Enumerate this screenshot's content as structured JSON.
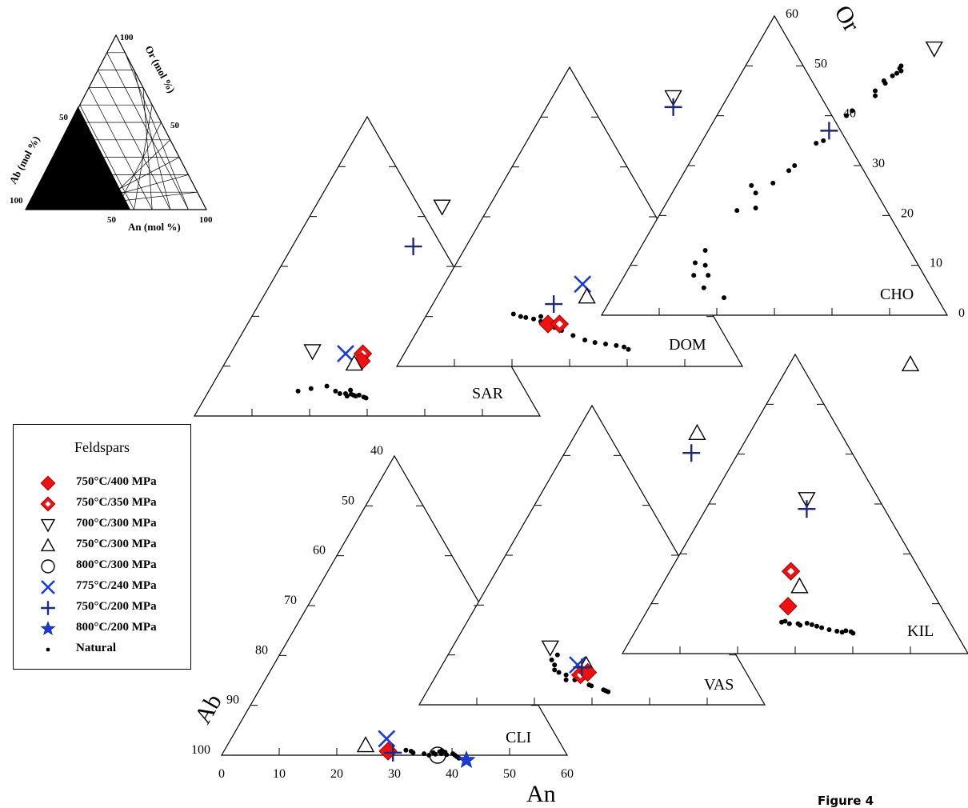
{
  "colors": {
    "red": "#ee1111",
    "blue": "#1a3bd6",
    "darkblue": "#1e2a78",
    "black": "#000000"
  },
  "inset": {
    "tick_labels": {
      "or_100": "100",
      "or_50": "50",
      "ab_50": "50",
      "ab_100": "100",
      "an_50": "50",
      "an_100": "100"
    },
    "axis_labels": {
      "or": "Or (mol %)",
      "ab": "Ab (mol %)",
      "an": "An (mol %)"
    }
  },
  "axes": {
    "an_title": "An",
    "ab_title": "Ab",
    "or_title": "Or",
    "an_ticks": [
      "0",
      "10",
      "20",
      "30",
      "40",
      "50",
      "60"
    ],
    "ab_ticks": [
      "40",
      "50",
      "60",
      "70",
      "80",
      "90",
      "100"
    ],
    "or_ticks": [
      "60",
      "50",
      "40",
      "30",
      "20",
      "10",
      "0"
    ]
  },
  "legend": {
    "title": "Feldspars",
    "items": [
      {
        "marker": "diamond-red",
        "label": "750°C/400 MPa"
      },
      {
        "marker": "diamond-red-open",
        "label": "750°C/350 MPa"
      },
      {
        "marker": "triangle-down",
        "label": "700°C/300 MPa"
      },
      {
        "marker": "triangle-up",
        "label": "750°C/300 MPa"
      },
      {
        "marker": "circle-open",
        "label": "800°C/300 MPa"
      },
      {
        "marker": "x-blue",
        "label": "775°C/240 MPa"
      },
      {
        "marker": "plus-blue",
        "label": "750°C/200 MPa"
      },
      {
        "marker": "star-blue",
        "label": "800°C/200 MPa"
      },
      {
        "marker": "dot",
        "label": "Natural"
      }
    ]
  },
  "figure_label": "Figure 4",
  "chart_data": {
    "type": "scatter",
    "subtype": "ternary",
    "components": [
      "An",
      "Ab",
      "Or"
    ],
    "an_range": [
      0,
      60
    ],
    "or_range": [
      0,
      60
    ],
    "ab_range": [
      40,
      100
    ],
    "panels": [
      {
        "label": "CLI",
        "points": [
          {
            "marker": "triangle-up",
            "an": 24,
            "or": 2
          },
          {
            "marker": "x-blue",
            "an": 27,
            "or": 3.3
          },
          {
            "marker": "diamond-red",
            "an": 28.5,
            "or": 0.8
          },
          {
            "marker": "plus-blue",
            "an": 29.5,
            "or": 0.5
          },
          {
            "marker": "circle-open",
            "an": 37.5,
            "or": 0
          },
          {
            "marker": "star-blue",
            "an": 43,
            "or": -1
          }
        ],
        "natural": [
          [
            31.5,
            1
          ],
          [
            32.5,
            0.8
          ],
          [
            33,
            0.5
          ],
          [
            35,
            0.3
          ],
          [
            36,
            0
          ],
          [
            37,
            0.2
          ],
          [
            37.5,
            0.7
          ],
          [
            38.5,
            0.6
          ],
          [
            38,
            0.3
          ],
          [
            39,
            0.1
          ],
          [
            40,
            0.3
          ],
          [
            40.5,
            0
          ],
          [
            41,
            -0.3
          ],
          [
            41.5,
            -0.6
          ],
          [
            36.5,
            0.5
          ],
          [
            37.8,
            0.9
          ]
        ]
      },
      {
        "label": "VAS",
        "points": [
          {
            "marker": "triangle-up",
            "an": 21,
            "or": 54.5
          },
          {
            "marker": "plus-blue",
            "an": 22,
            "or": 50.5
          },
          {
            "marker": "triangle-down",
            "an": 17,
            "or": 11.5
          },
          {
            "marker": "x-blue",
            "an": 23.5,
            "or": 8
          },
          {
            "marker": "triangle-up",
            "an": 25,
            "or": 8
          },
          {
            "marker": "diamond-red-open",
            "an": 25,
            "or": 6
          },
          {
            "marker": "diamond-red",
            "an": 26,
            "or": 6.5
          },
          {
            "marker": "plus-blue",
            "an": 24.5,
            "or": 7.5
          }
        ],
        "natural": [
          [
            19,
            10
          ],
          [
            18.5,
            9
          ],
          [
            19.5,
            8
          ],
          [
            20,
            7
          ],
          [
            21,
            6.5
          ],
          [
            22.5,
            6
          ],
          [
            23,
            5
          ],
          [
            24.5,
            5
          ],
          [
            25.5,
            5
          ],
          [
            27.5,
            4
          ],
          [
            28,
            3.8
          ],
          [
            30.5,
            3
          ],
          [
            31,
            2.8
          ],
          [
            31.5,
            2.6
          ]
        ]
      },
      {
        "label": "KIL",
        "points": [
          {
            "marker": "triangle-up",
            "an": 21,
            "or": 58
          },
          {
            "marker": "triangle-down",
            "an": 16.5,
            "or": 31
          },
          {
            "marker": "plus-blue",
            "an": 17.5,
            "or": 29
          },
          {
            "marker": "diamond-red-open",
            "an": 21,
            "or": 16.5
          },
          {
            "marker": "triangle-up",
            "an": 24,
            "or": 13.5
          },
          {
            "marker": "diamond-red",
            "an": 24,
            "or": 9.5
          }
        ],
        "natural": [
          [
            24.5,
            6.3
          ],
          [
            25,
            6.5
          ],
          [
            26,
            6
          ],
          [
            27.5,
            6
          ],
          [
            28,
            5.7
          ],
          [
            29,
            6.1
          ],
          [
            30,
            5.8
          ],
          [
            31,
            5.5
          ],
          [
            32,
            5.2
          ],
          [
            33.5,
            4.8
          ],
          [
            35,
            4.5
          ],
          [
            36,
            4.3
          ],
          [
            36.5,
            4.6
          ],
          [
            37.5,
            4.4
          ],
          [
            38,
            4.1
          ]
        ]
      },
      {
        "label": "SAR",
        "points": [
          {
            "marker": "triangle-down",
            "an": 22,
            "or": 42
          },
          {
            "marker": "plus-blue",
            "an": 21,
            "or": 34
          },
          {
            "marker": "triangle-down",
            "an": 14,
            "or": 13
          },
          {
            "marker": "x-blue",
            "an": 20,
            "or": 12.5
          },
          {
            "marker": "diamond-red-open",
            "an": 23,
            "or": 12.5
          },
          {
            "marker": "diamond-red",
            "an": 23.5,
            "or": 11
          },
          {
            "marker": "triangle-up",
            "an": 22.5,
            "or": 10.5
          }
        ],
        "natural": [
          [
            15.5,
            5
          ],
          [
            17.5,
            5.5
          ],
          [
            20,
            6
          ],
          [
            22,
            5
          ],
          [
            23,
            4.5
          ],
          [
            24,
            4.5
          ],
          [
            24.5,
            4
          ],
          [
            25,
            4.4
          ],
          [
            25.5,
            4.2
          ],
          [
            26,
            4
          ],
          [
            26.5,
            4.2
          ],
          [
            27.5,
            3.8
          ],
          [
            28,
            3.6
          ],
          [
            24.5,
            5.2
          ]
        ]
      },
      {
        "label": "DOM",
        "points": [
          {
            "marker": "triangle-down",
            "an": 21,
            "or": 54
          },
          {
            "marker": "plus-blue",
            "an": 22,
            "or": 52
          },
          {
            "marker": "x-blue",
            "an": 24,
            "or": 16.5
          },
          {
            "marker": "triangle-up",
            "an": 26,
            "or": 14
          },
          {
            "marker": "plus-blue",
            "an": 21,
            "or": 12.5
          },
          {
            "marker": "diamond-red",
            "an": 22,
            "or": 8.5
          },
          {
            "marker": "diamond-red-open",
            "an": 24,
            "or": 8.5
          }
        ],
        "natural": [
          [
            15,
            10.5
          ],
          [
            16.5,
            10
          ],
          [
            17.5,
            9.8
          ],
          [
            19,
            9.5
          ],
          [
            20.5,
            9
          ],
          [
            21.5,
            8.6
          ],
          [
            22.5,
            8.2
          ],
          [
            23.5,
            7.8
          ],
          [
            25,
            7.2
          ],
          [
            27.5,
            6.2
          ],
          [
            30,
            5.3
          ],
          [
            32,
            4.8
          ],
          [
            34,
            4.5
          ],
          [
            36,
            4.2
          ],
          [
            37.5,
            3.9
          ],
          [
            38.5,
            3.4
          ],
          [
            20,
            10
          ]
        ]
      },
      {
        "label": "CHO",
        "points": [
          {
            "marker": "triangle-down",
            "an": 31,
            "or": 53.5
          },
          {
            "marker": "plus-blue",
            "an": 21,
            "or": 37
          }
        ],
        "natural": [
          [
            27,
            50
          ],
          [
            27,
            49.5
          ],
          [
            27.5,
            49
          ],
          [
            27,
            48.5
          ],
          [
            26.5,
            48
          ],
          [
            25.5,
            47
          ],
          [
            26,
            46.5
          ],
          [
            25,
            45
          ],
          [
            25.5,
            44
          ],
          [
            23,
            41
          ],
          [
            22.5,
            40
          ],
          [
            21,
            35
          ],
          [
            20,
            34.5
          ],
          [
            18.5,
            30
          ],
          [
            18,
            29
          ],
          [
            16.5,
            26.5
          ],
          [
            13,
            26
          ],
          [
            14.5,
            24.5
          ],
          [
            13,
            21
          ],
          [
            16,
            21.5
          ],
          [
            11.5,
            13
          ],
          [
            11,
            10.5
          ],
          [
            13,
            10
          ],
          [
            12,
            8
          ],
          [
            14.5,
            8
          ],
          [
            15,
            5.5
          ],
          [
            19.5,
            3.5
          ]
        ]
      }
    ]
  }
}
